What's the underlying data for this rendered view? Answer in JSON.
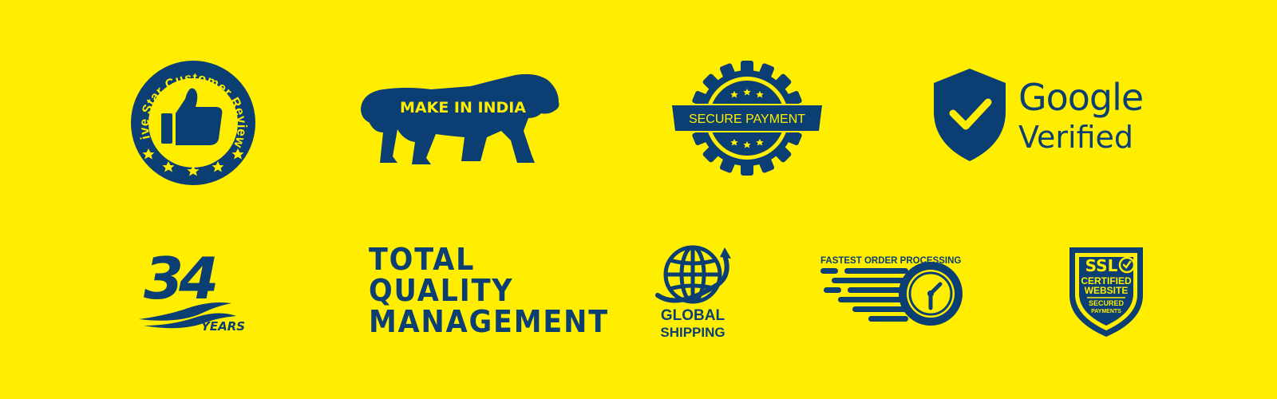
{
  "colors": {
    "background": "#ffee00",
    "brand": "#0b3e73"
  },
  "badges": {
    "five_star": {
      "text": "Five Star Customer Review",
      "icon": "thumbs-up-icon"
    },
    "make_in_india": {
      "text": "MAKE IN INDIA",
      "icon": "lion-icon"
    },
    "secure_payment": {
      "text": "SECURE PAYMENT",
      "icon": "gear-seal-icon"
    },
    "google_verified": {
      "line1": "Google",
      "line2": "Verified",
      "icon": "shield-check-icon"
    },
    "years": {
      "number": "34",
      "label": "YEARS",
      "icon": "wave-icon"
    },
    "tqm": {
      "line1": "TOTAL",
      "line2": "QUALITY",
      "line3": "MANAGEMENT"
    },
    "global_shipping": {
      "line1": "GLOBAL",
      "line2": "SHIPPING",
      "icon": "globe-icon"
    },
    "fastest_order": {
      "text": "FASTEST ORDER PROCESSING",
      "icon": "clock-icon"
    },
    "ssl": {
      "title": "SSL",
      "line1": "CERTIFIED",
      "line2": "WEBSITE",
      "line3": "SECURED",
      "line4": "PAYMENTS",
      "icon": "ssl-shield-icon"
    }
  }
}
